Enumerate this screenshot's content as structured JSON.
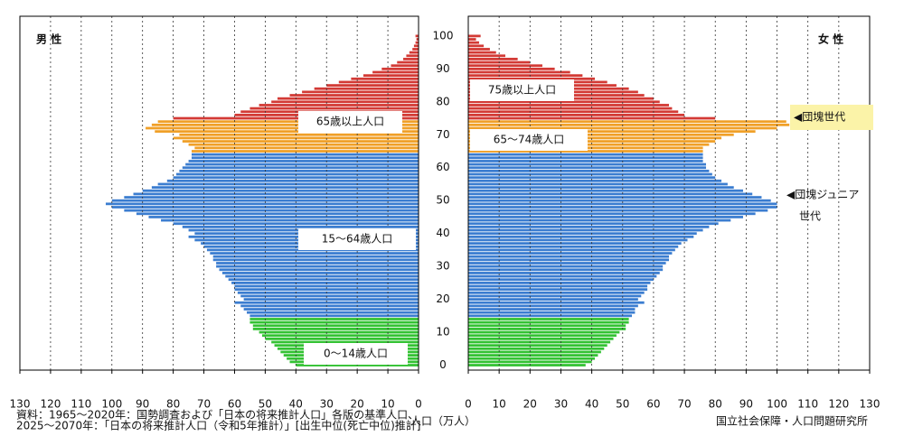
{
  "chart_data": {
    "type": "pyramid",
    "ages": [
      0,
      1,
      2,
      3,
      4,
      5,
      6,
      7,
      8,
      9,
      10,
      11,
      12,
      13,
      14,
      15,
      16,
      17,
      18,
      19,
      20,
      21,
      22,
      23,
      24,
      25,
      26,
      27,
      28,
      29,
      30,
      31,
      32,
      33,
      34,
      35,
      36,
      37,
      38,
      39,
      40,
      41,
      42,
      43,
      44,
      45,
      46,
      47,
      48,
      49,
      50,
      51,
      52,
      53,
      54,
      55,
      56,
      57,
      58,
      59,
      60,
      61,
      62,
      63,
      64,
      65,
      66,
      67,
      68,
      69,
      70,
      71,
      72,
      73,
      74,
      75,
      76,
      77,
      78,
      79,
      80,
      81,
      82,
      83,
      84,
      85,
      86,
      87,
      88,
      89,
      90,
      91,
      92,
      93,
      94,
      95,
      96,
      97,
      98,
      99,
      100
    ],
    "series": [
      {
        "name": "男 性",
        "side": "left",
        "values": [
          40,
          42,
          43,
          44,
          45,
          46,
          47,
          48,
          50,
          51,
          52,
          54,
          54,
          55,
          55,
          55,
          56,
          57,
          58,
          60,
          57,
          58,
          59,
          60,
          60,
          61,
          62,
          63,
          64,
          65,
          66,
          66,
          67,
          67,
          68,
          69,
          70,
          71,
          73,
          75,
          73,
          75,
          77,
          80,
          84,
          88,
          92,
          96,
          100,
          102,
          100,
          96,
          93,
          90,
          87,
          85,
          82,
          80,
          79,
          78,
          77,
          76,
          75,
          74,
          74,
          74,
          73,
          75,
          77,
          80,
          78,
          86,
          89,
          87,
          85,
          80,
          60,
          58,
          55,
          52,
          48,
          46,
          42,
          38,
          34,
          30,
          26,
          22,
          18,
          15,
          12,
          9,
          7,
          5,
          4,
          3,
          2,
          1.5,
          1,
          0.7,
          1
        ]
      },
      {
        "name": "女 性",
        "side": "right",
        "values": [
          38,
          40,
          41,
          42,
          43,
          44,
          45,
          46,
          47,
          48,
          49,
          51,
          51,
          52,
          52,
          53,
          54,
          54,
          55,
          57,
          55,
          56,
          57,
          58,
          58,
          59,
          60,
          61,
          62,
          63,
          63,
          64,
          65,
          65,
          66,
          67,
          68,
          69,
          71,
          73,
          74,
          76,
          78,
          81,
          85,
          89,
          93,
          97,
          100,
          100,
          98,
          95,
          92,
          89,
          86,
          84,
          82,
          80,
          79,
          78,
          77,
          77,
          76,
          76,
          76,
          76,
          76,
          78,
          80,
          82,
          86,
          93,
          100,
          104,
          103,
          80,
          70,
          68,
          66,
          65,
          62,
          60,
          57,
          55,
          52,
          48,
          45,
          41,
          37,
          33,
          28,
          24,
          20,
          16,
          12,
          9,
          7,
          5,
          3.5,
          2.5,
          4
        ]
      }
    ],
    "bands": [
      {
        "from": 0,
        "to": 14,
        "color": "#33c233"
      },
      {
        "from": 15,
        "to": 64,
        "color": "#3b7dd0"
      },
      {
        "from": 65,
        "to": 74,
        "color": "#f0a028"
      },
      {
        "from": 75,
        "to": 100,
        "color": "#d33a35"
      }
    ],
    "band_labels": [
      {
        "text": "65歳以上人口",
        "side": "left"
      },
      {
        "text": "15〜64歳人口",
        "side": "left"
      },
      {
        "text": "0〜14歳人口",
        "side": "left"
      },
      {
        "text": "75歳以上人口",
        "side": "right"
      },
      {
        "text": "65〜74歳人口",
        "side": "right"
      }
    ],
    "annotations": [
      [
        "◀団塊世代"
      ],
      [
        "◀団塊ジュニア",
        "世代"
      ]
    ],
    "xlim": [
      0,
      130
    ],
    "xticks": [
      0,
      10,
      20,
      30,
      40,
      50,
      60,
      70,
      80,
      90,
      100,
      110,
      120,
      130
    ],
    "ylim": [
      -1.5,
      106
    ],
    "yticks": [
      0,
      10,
      20,
      30,
      40,
      50,
      60,
      70,
      80,
      90,
      100
    ],
    "grid": true,
    "x_label": "人口（万人）",
    "source": [
      "資料：1965〜2020年：国勢調査および「日本の将来推計人口」各版の基準人口、",
      "2025〜2070年：「日本の将来推計人口（令和5年推計）」[出生中位(死亡中位)推計]"
    ],
    "credit": "国立社会保障・人口問題研究所"
  }
}
